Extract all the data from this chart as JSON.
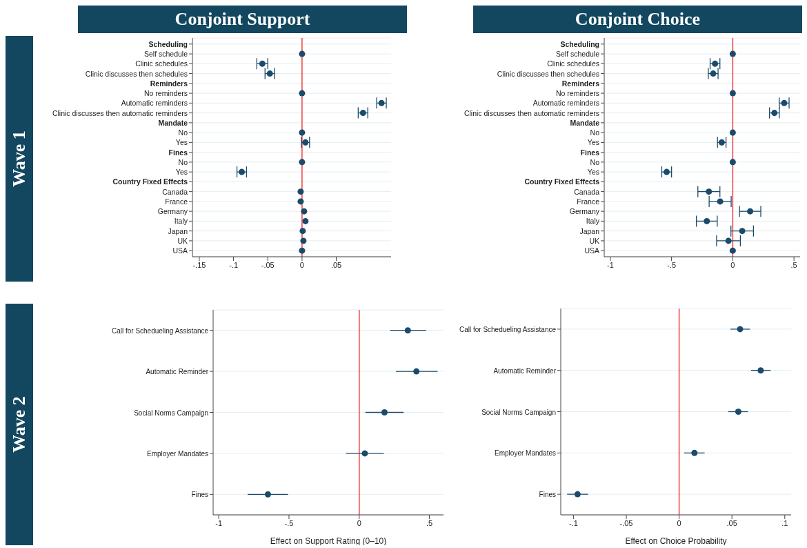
{
  "chart_data": [
    {
      "type": "scatter",
      "orientation": "horizontal",
      "title": "Conjoint Support",
      "annotations": [
        "Wave 1"
      ],
      "categories": [
        "Scheduling",
        "Self schedule",
        "Clinic schedules",
        "Clinic discusses then schedules",
        "Reminders",
        "No reminders",
        "Automatic reminders",
        "Clinic discusses then automatic reminders",
        "Mandate",
        "No",
        "Yes",
        "Fines",
        "No",
        "Yes",
        "Country Fixed Effects",
        "Canada",
        "France",
        "Germany",
        "Italy",
        "Japan",
        "UK",
        "USA"
      ],
      "values": [
        null,
        0,
        -0.058,
        -0.047,
        null,
        0,
        0.116,
        0.089,
        null,
        0,
        0.005,
        null,
        0,
        -0.088,
        null,
        -0.002,
        -0.002,
        0.003,
        0.005,
        0.001,
        0.002,
        0
      ],
      "errors": [
        null,
        null,
        0.008,
        0.007,
        null,
        null,
        0.007,
        0.007,
        null,
        null,
        0.006,
        null,
        null,
        0.007,
        null,
        null,
        null,
        null,
        null,
        null,
        null,
        null
      ],
      "color": "#1b4a6b",
      "marker": "circle",
      "grid": "y",
      "xlim": [
        -0.16,
        0.13
      ],
      "xticks": [
        {
          "value": -0.15,
          "label": "-.15"
        },
        {
          "value": -0.1,
          "label": "-.1"
        },
        {
          "value": -0.05,
          "label": "-.05"
        },
        {
          "value": 0,
          "label": "0"
        },
        {
          "value": 0.05,
          "label": ".05"
        }
      ],
      "ref_lines": [
        {
          "axis": "x",
          "value": 0,
          "color": "#f03c3c"
        }
      ]
    },
    {
      "type": "scatter",
      "orientation": "horizontal",
      "title": "Conjoint Choice",
      "categories": [
        "Scheduling",
        "Self schedule",
        "Clinic schedules",
        "Clinic discusses then schedules",
        "Reminders",
        "No reminders",
        "Automatic reminders",
        "Clinic discusses then automatic reminders",
        "Mandate",
        "No",
        "Yes",
        "Fines",
        "No",
        "Yes",
        "Country Fixed Effects",
        "Canada",
        "France",
        "Germany",
        "Italy",
        "Japan",
        "UK",
        "USA"
      ],
      "values": [
        null,
        0,
        -0.145,
        -0.16,
        null,
        0,
        0.42,
        0.34,
        null,
        0,
        -0.09,
        null,
        0,
        -0.54,
        null,
        -0.195,
        -0.103,
        0.142,
        -0.212,
        0.077,
        -0.035,
        0
      ],
      "errors": [
        null,
        null,
        0.04,
        0.04,
        null,
        null,
        0.04,
        0.04,
        null,
        null,
        0.035,
        null,
        null,
        0.04,
        null,
        0.09,
        0.09,
        0.087,
        0.085,
        0.092,
        0.097,
        null
      ],
      "color": "#1b4a6b",
      "marker": "circle",
      "grid": "y",
      "xlim": [
        -1.05,
        0.55
      ],
      "xticks": [
        {
          "value": -1,
          "label": "-1"
        },
        {
          "value": -0.5,
          "label": "-.5"
        },
        {
          "value": 0,
          "label": "0"
        },
        {
          "value": 0.5,
          "label": ".5"
        }
      ],
      "ref_lines": [
        {
          "axis": "x",
          "value": 0,
          "color": "#f03c3c"
        }
      ]
    },
    {
      "type": "scatter",
      "orientation": "horizontal",
      "annotations": [
        "Wave 2"
      ],
      "xlabel": "Effect on Support Rating (0–10)",
      "categories": [
        "Call for Schedueling Assistance",
        "Automatic Reminder",
        "Social Norms Campaign",
        "Employer Mandates",
        "Fines"
      ],
      "values": [
        0.346,
        0.407,
        0.18,
        0.04,
        -0.65
      ],
      "errors": [
        [
          0.22,
          0.476
        ],
        [
          0.262,
          0.558
        ],
        [
          0.044,
          0.316
        ],
        [
          -0.094,
          0.175
        ],
        [
          -0.794,
          -0.507
        ]
      ],
      "color": "#1b4a6b",
      "marker": "circle",
      "grid": "y",
      "xlim": [
        -1.04,
        0.6
      ],
      "xticks": [
        {
          "value": -1,
          "label": "-1"
        },
        {
          "value": -0.5,
          "label": "-.5"
        },
        {
          "value": 0,
          "label": "0"
        },
        {
          "value": 0.5,
          "label": ".5"
        }
      ],
      "ref_lines": [
        {
          "axis": "x",
          "value": 0,
          "color": "#f03c3c"
        }
      ]
    },
    {
      "type": "scatter",
      "orientation": "horizontal",
      "xlabel": "Effect on Choice Probability",
      "categories": [
        "Call for Schedueling Assistance",
        "Automatic Reminder",
        "Social Norms Campaign",
        "Employer Mandates",
        "Fines"
      ],
      "values": [
        0.0577,
        0.0772,
        0.056,
        0.0145,
        -0.0961
      ],
      "errors": [
        [
          0.0486,
          0.0671
        ],
        [
          0.0681,
          0.0866
        ],
        [
          0.0464,
          0.0653
        ],
        [
          0.0048,
          0.0241
        ],
        [
          -0.106,
          -0.0861
        ]
      ],
      "color": "#1b4a6b",
      "marker": "circle",
      "grid": "y",
      "xlim": [
        -0.112,
        0.106
      ],
      "xticks": [
        {
          "value": -0.1,
          "label": "-.1"
        },
        {
          "value": -0.05,
          "label": "-.05"
        },
        {
          "value": 0,
          "label": "0"
        },
        {
          "value": 0.05,
          "label": ".05"
        },
        {
          "value": 0.1,
          "label": ".1"
        }
      ],
      "ref_lines": [
        {
          "axis": "x",
          "value": 0,
          "color": "#f03c3c"
        }
      ]
    }
  ]
}
